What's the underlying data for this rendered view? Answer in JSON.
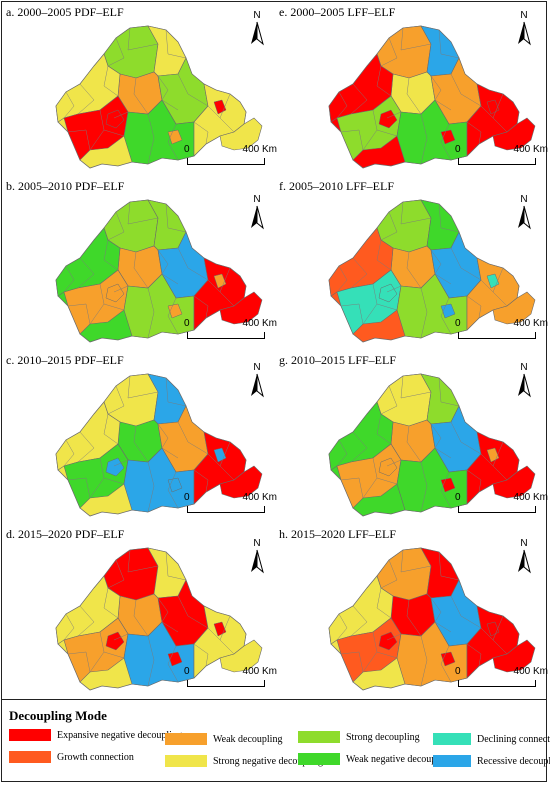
{
  "colors": {
    "expansive_negative": "#ff0000",
    "growth_connection": "#ff5a1f",
    "weak_decoupling": "#f7a02c",
    "strong_negative": "#f0e54a",
    "strong_decoupling": "#8edc2c",
    "weak_negative": "#3fd82a",
    "declining_connection": "#35e0b8",
    "recessive": "#2ba6e8"
  },
  "panels": [
    {
      "title": "a. 2000–2005 PDF–ELF",
      "fill": [
        "#8edc2c",
        "#f0e54a",
        "#f7a02c",
        "#f0e54a",
        "#ff0000",
        "#8edc2c",
        "#3fd82a",
        "#f0e54a"
      ],
      "accent": "#ff0000"
    },
    {
      "title": "e. 2000–2005 LFF–ELF",
      "fill": [
        "#f7a02c",
        "#2ba6e8",
        "#f0e54a",
        "#ff0000",
        "#8edc2c",
        "#f7a02c",
        "#3fd82a",
        "#ff0000"
      ],
      "accent": "#ff0000"
    },
    {
      "title": "b. 2005–2010 PDF–ELF",
      "fill": [
        "#8edc2c",
        "#8edc2c",
        "#f7a02c",
        "#3fd82a",
        "#f7a02c",
        "#2ba6e8",
        "#8edc2c",
        "#ff0000"
      ],
      "accent": "#f7a02c"
    },
    {
      "title": "f. 2005–2010 LFF–ELF",
      "fill": [
        "#8edc2c",
        "#3fd82a",
        "#f7a02c",
        "#ff5a1f",
        "#35e0b8",
        "#2ba6e8",
        "#8edc2c",
        "#f7a02c"
      ],
      "accent": "#35e0b8"
    },
    {
      "title": "c. 2010–2015 PDF–ELF",
      "fill": [
        "#f0e54a",
        "#2ba6e8",
        "#3fd82a",
        "#f0e54a",
        "#3fd82a",
        "#f7a02c",
        "#2ba6e8",
        "#ff0000"
      ],
      "accent": "#2ba6e8"
    },
    {
      "title": "g. 2010–2015 LFF–ELF",
      "fill": [
        "#f0e54a",
        "#8edc2c",
        "#f7a02c",
        "#3fd82a",
        "#f7a02c",
        "#2ba6e8",
        "#3fd82a",
        "#ff0000"
      ],
      "accent": "#f7a02c"
    },
    {
      "title": "d. 2015–2020 PDF–ELF",
      "fill": [
        "#ff0000",
        "#f0e54a",
        "#f7a02c",
        "#f0e54a",
        "#f7a02c",
        "#ff0000",
        "#2ba6e8",
        "#f0e54a"
      ],
      "accent": "#ff0000"
    },
    {
      "title": "h. 2015–2020 LFF–ELF",
      "fill": [
        "#f7a02c",
        "#ff0000",
        "#ff0000",
        "#f0e54a",
        "#ff5a1f",
        "#2ba6e8",
        "#f7a02c",
        "#ff0000"
      ],
      "accent": "#ff0000"
    }
  ],
  "north_label": "N",
  "scale": {
    "start": "0",
    "end": "400 Km"
  },
  "legend": {
    "title": "Decoupling Mode",
    "items": [
      {
        "label": "Expansive negative decoupling",
        "color": "#ff0000"
      },
      {
        "label": "Growth connection",
        "color": "#ff5a1f"
      },
      {
        "label": "Weak decoupling",
        "color": "#f7a02c"
      },
      {
        "label": "Strong negative decoupling",
        "color": "#f0e54a"
      },
      {
        "label": "Strong decoupling",
        "color": "#8edc2c"
      },
      {
        "label": "Weak negative decoupling",
        "color": "#3fd82a"
      },
      {
        "label": "Declining connection",
        "color": "#35e0b8"
      },
      {
        "label": "Recessive decoupling",
        "color": "#2ba6e8"
      }
    ]
  }
}
